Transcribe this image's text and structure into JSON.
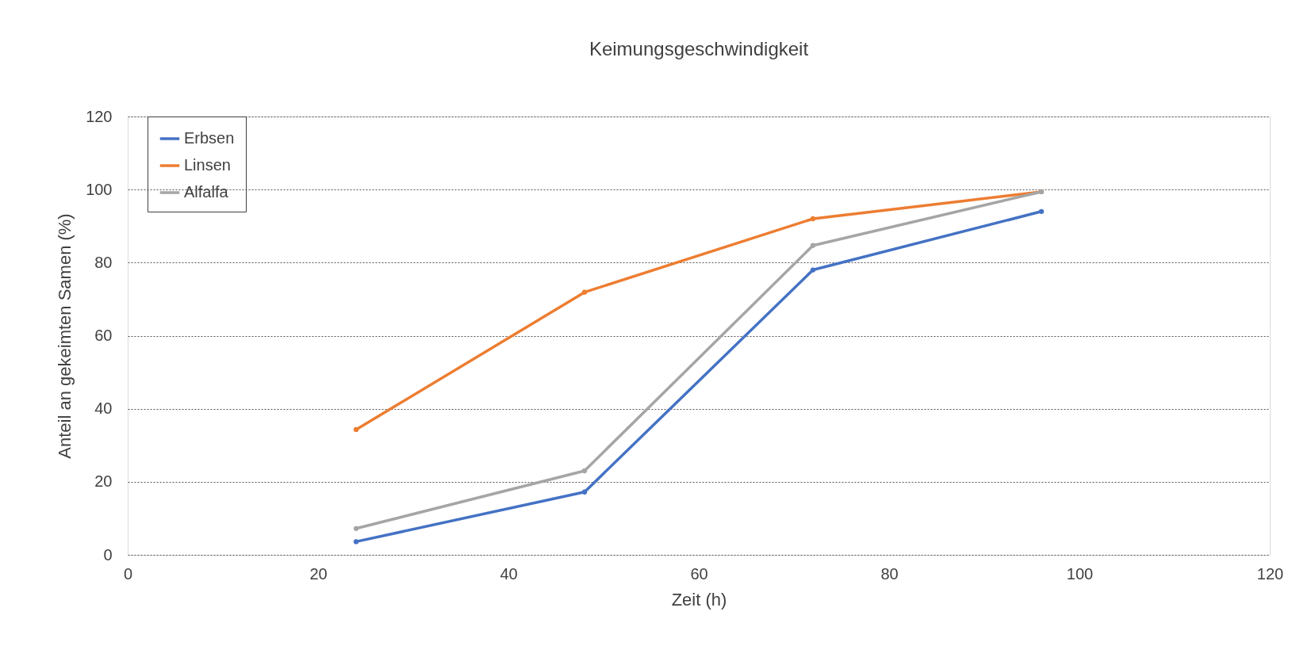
{
  "chart_data": {
    "type": "line",
    "title": "Keimungsgeschwindigkeit",
    "xlabel": "Zeit (h)",
    "ylabel": "Anteil an gekeimten Samen (%)",
    "x": [
      24,
      48,
      72,
      96
    ],
    "series": [
      {
        "name": "Erbsen",
        "color": "#4472c4",
        "values": [
          3.6,
          17.2,
          78,
          94
        ]
      },
      {
        "name": "Linsen",
        "color": "#ed7d31",
        "values": [
          34.3,
          71.9,
          92,
          99.4
        ]
      },
      {
        "name": "Alfalfa",
        "color": "#a5a5a5",
        "values": [
          7.2,
          23,
          84.7,
          99.4
        ]
      }
    ],
    "xlim": [
      0,
      120
    ],
    "xticks": [
      0,
      20,
      40,
      60,
      80,
      100,
      120
    ],
    "ylim": [
      0,
      120
    ],
    "yticks": [
      0,
      20,
      40,
      60,
      80,
      100,
      120
    ],
    "grid": "y",
    "legend": "top left",
    "marker": "circle",
    "line_style": "solid"
  }
}
